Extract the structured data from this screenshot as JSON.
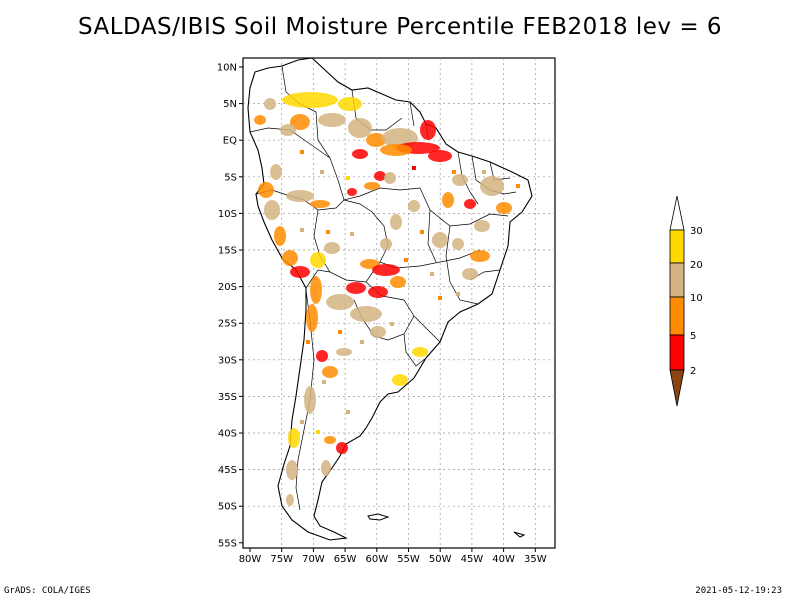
{
  "title": "SALDAS/IBIS Soil Moisture Percentile FEB2018 lev = 6",
  "lat_ticks": [
    "10N",
    "5N",
    "EQ",
    "5S",
    "10S",
    "15S",
    "20S",
    "25S",
    "30S",
    "35S",
    "40S",
    "45S",
    "50S",
    "55S"
  ],
  "lon_ticks": [
    "80W",
    "75W",
    "70W",
    "65W",
    "60W",
    "55W",
    "50W",
    "45W",
    "40W",
    "35W"
  ],
  "colorbar": {
    "labels": [
      "30",
      "20",
      "10",
      "5",
      "2"
    ],
    "colors": {
      "above_30": "#ffffff",
      "c20_30": "#ffd800",
      "c10_20": "#d4b483",
      "c5_10": "#ff8c00",
      "c2_5": "#ff0000",
      "below_2": "#8b4513"
    }
  },
  "footer_left": "GrADS: COLA/IGES",
  "footer_right": "2021-05-12-19:23"
}
